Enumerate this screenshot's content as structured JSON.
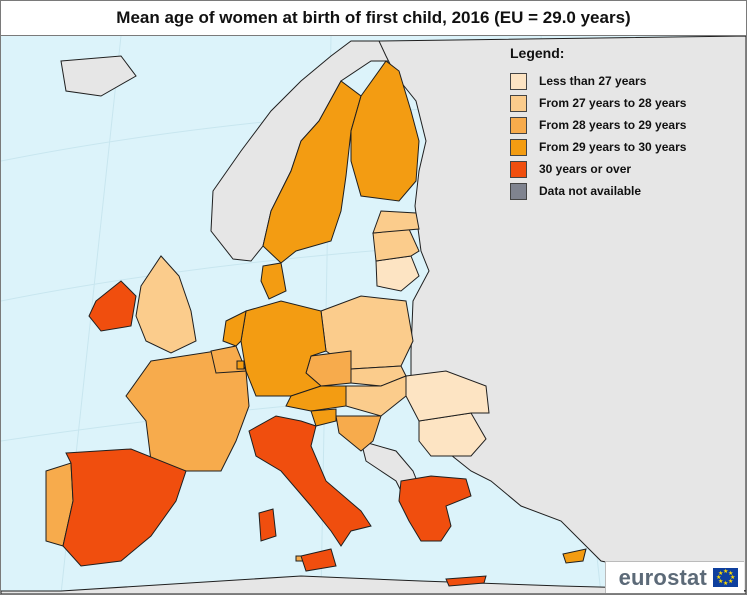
{
  "title": "Mean age of women at birth of first child, 2016 (EU = 29.0 years)",
  "legend": {
    "title": "Legend:",
    "items": [
      {
        "label": "Less than 27 years",
        "color": "#fde4c3"
      },
      {
        "label": "From 27 years to 28 years",
        "color": "#fbcc8c"
      },
      {
        "label": "From 28 years to 29 years",
        "color": "#f7ab4c"
      },
      {
        "label": "From 29 years to 30 years",
        "color": "#f39c12"
      },
      {
        "label": "30 years or over",
        "color": "#f04e0e"
      },
      {
        "label": "Data not available",
        "color": "#7f838f"
      }
    ]
  },
  "colors": {
    "sea": "#dcf3fa",
    "non_eu_land": "#e6e6e6",
    "border": "#1f1f1f",
    "graticule": "#c8e6ef"
  },
  "logo": {
    "text": "eurostat",
    "icon": "eu-flag-icon"
  }
}
